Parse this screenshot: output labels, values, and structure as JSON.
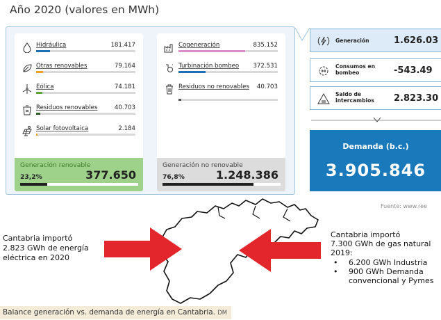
{
  "title": "Año 2020 (valores en MWh)",
  "renovable": {
    "items": [
      {
        "label": "Hidráulica",
        "value": "181.417",
        "fill": 0.14,
        "color": "#1f6fb4",
        "icon": "water-drop-icon"
      },
      {
        "label": "Otras renovables",
        "value": "79.164",
        "fill": 0.07,
        "color": "#f0a12b",
        "icon": "leaf-icon"
      },
      {
        "label": "Eólica",
        "value": "74.181",
        "fill": 0.06,
        "color": "#5aa53a",
        "icon": "wind-turbine-icon"
      },
      {
        "label": "Residuos renovables",
        "value": "40.703",
        "fill": 0.04,
        "color": "#2f5d2a",
        "icon": "waste-renewable-icon"
      },
      {
        "label": "Solar fotovoltaica",
        "value": "2.184",
        "fill": 0.012,
        "color": "#e0a11a",
        "icon": "solar-panel-icon"
      }
    ],
    "total_label": "Generación renovable",
    "pct": "23,2%",
    "total_value": "377.650",
    "total_fill": 0.232
  },
  "no_renovable": {
    "items": [
      {
        "label": "Cogeneración",
        "value": "835.152",
        "fill": 0.67,
        "color": "#d98cc7",
        "icon": "factory-icon"
      },
      {
        "label": "Turbinación bombeo",
        "value": "372.531",
        "fill": 0.27,
        "color": "#1f6fb4",
        "icon": "pumping-icon"
      },
      {
        "label": "Residuos no renovables",
        "value": "40.703",
        "fill": 0.03,
        "color": "#555555",
        "icon": "trash-icon"
      }
    ],
    "total_label": "Generación no renovable",
    "pct": "76,8%",
    "total_value": "1.248.386",
    "total_fill": 0.768
  },
  "side": {
    "generacion": {
      "label": "Generación",
      "value": "1.626.03"
    },
    "consumos": {
      "label": "Consumos en bombeo",
      "value": "-543.49"
    },
    "saldo": {
      "label": "Saldo de intercambios",
      "value": "2.823.30"
    }
  },
  "demanda": {
    "label": "Demanda (b.c.)",
    "value": "3.905.846"
  },
  "fuente": "Fuente: www.ree",
  "left_text": "Cantabria importó\n2.823 GWh de energía\neléctrica  en 2020",
  "right_text": {
    "para": "Cantabria importó\n7.300 GWh de gas natural\n2019:",
    "bullets": [
      "6.200 GWh Industria",
      "900 GWh Demanda convencional y Pymes"
    ]
  },
  "caption": {
    "text": "Balance generación vs. demanda de energía en Cantabria.",
    "credit": "DM"
  },
  "colors": {
    "accent": "#1a79ba",
    "arrow": "#e3262b",
    "renovable_total": "#9ed28b",
    "panel_border": "#9ec3dd"
  }
}
